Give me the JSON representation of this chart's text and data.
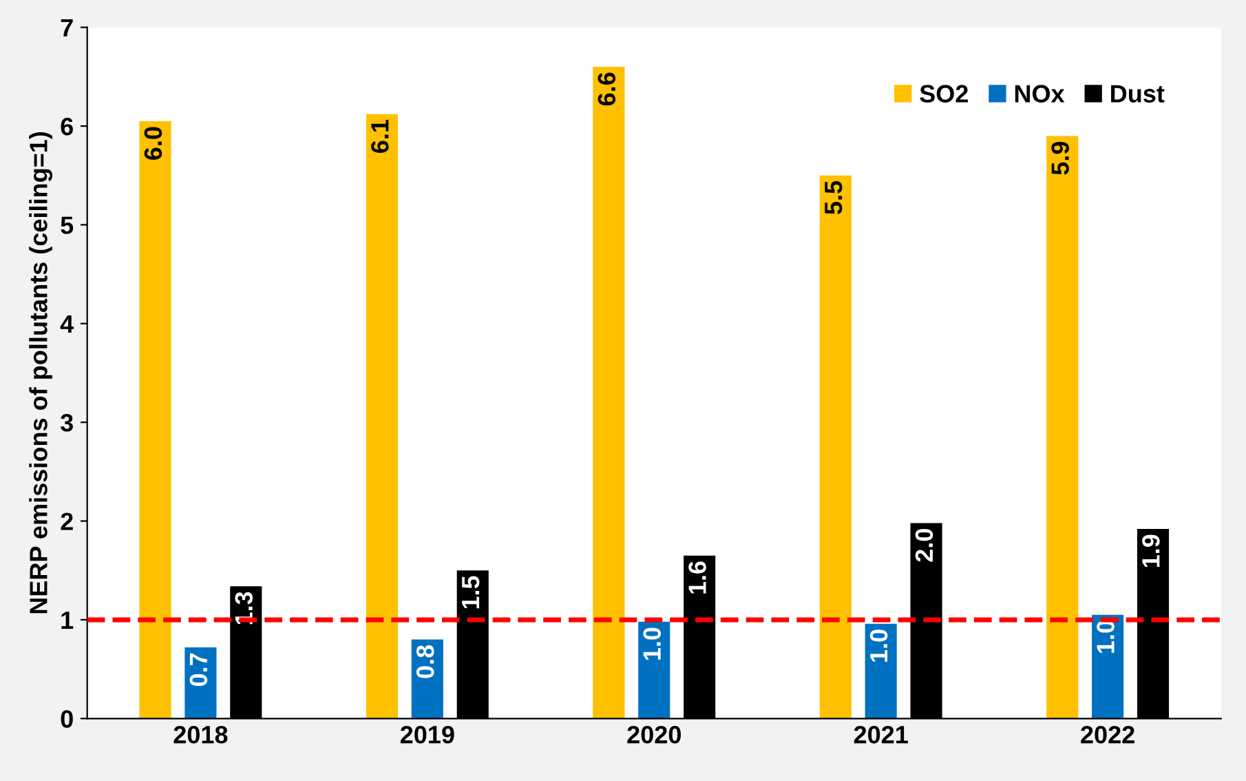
{
  "chart_data": {
    "type": "bar",
    "ylabel": "NERP emissions of pollutants (ceiling=1)",
    "categories": [
      "2018",
      "2019",
      "2020",
      "2021",
      "2022"
    ],
    "series": [
      {
        "name": "SO2",
        "color": "#ffc000",
        "values": [
          6.05,
          6.12,
          6.6,
          5.5,
          5.9
        ],
        "value_labels": [
          "6.0",
          "6.1",
          "6.6",
          "5.5",
          "5.9"
        ]
      },
      {
        "name": "NOx",
        "color": "#0070c0",
        "values": [
          0.72,
          0.8,
          0.98,
          0.96,
          1.05
        ],
        "value_labels": [
          "0.7",
          "0.8",
          "1.0",
          "1.0",
          "1.0"
        ]
      },
      {
        "name": "Dust",
        "color": "#000000",
        "values": [
          1.34,
          1.5,
          1.65,
          1.98,
          1.92
        ],
        "value_labels": [
          "1.3",
          "1.5",
          "1.6",
          "2.0",
          "1.9"
        ]
      }
    ],
    "ylim": [
      0,
      7
    ],
    "yticks": [
      0,
      1,
      2,
      3,
      4,
      5,
      6,
      7
    ],
    "grid": false,
    "legend": "top right",
    "ref_lines": [
      {
        "axis": "y",
        "value": 1,
        "color": "#ff0000",
        "line_style": "dashed"
      }
    ]
  }
}
